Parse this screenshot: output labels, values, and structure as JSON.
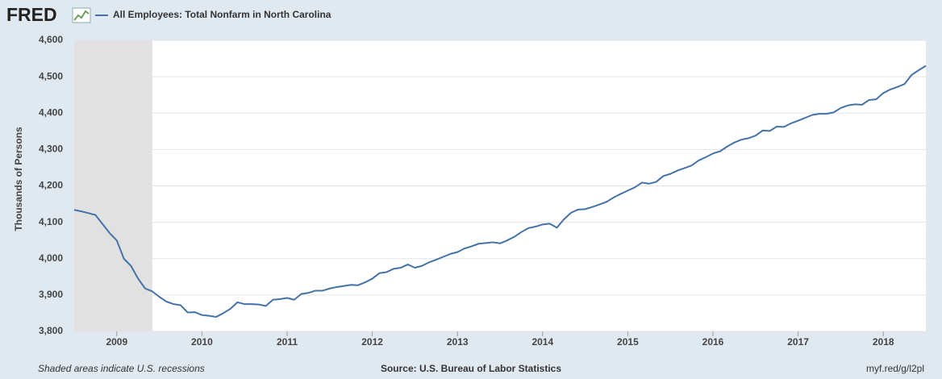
{
  "chart_data": {
    "type": "line",
    "logo": "FRED",
    "y_label": "Thousands of Persons",
    "footer_left": "Shaded areas indicate U.S. recessions",
    "footer_center": "Source: U.S. Bureau of Labor Statistics",
    "footer_right": "myf.red/g/l2pl",
    "xlim": [
      2008.5,
      2018.5
    ],
    "xticks": [
      2009,
      2010,
      2011,
      2012,
      2013,
      2014,
      2015,
      2016,
      2017,
      2018
    ],
    "ylim": [
      3800,
      4600
    ],
    "yticks": [
      {
        "value": 3800,
        "label": "3,800"
      },
      {
        "value": 3900,
        "label": "3,900"
      },
      {
        "value": 4000,
        "label": "4,000"
      },
      {
        "value": 4100,
        "label": "4,100"
      },
      {
        "value": 4200,
        "label": "4,200"
      },
      {
        "value": 4300,
        "label": "4,300"
      },
      {
        "value": 4400,
        "label": "4,400"
      },
      {
        "value": 4500,
        "label": "4,500"
      },
      {
        "value": 4600,
        "label": "4,600"
      }
    ],
    "grid": true,
    "recessions": [
      {
        "start": 2008.5,
        "end": 2009.417
      }
    ],
    "x": [
      2008.5,
      2008.583,
      2008.667,
      2008.75,
      2008.833,
      2008.917,
      2009,
      2009.083,
      2009.167,
      2009.25,
      2009.333,
      2009.417,
      2009.5,
      2009.583,
      2009.667,
      2009.75,
      2009.833,
      2009.917,
      2010,
      2010.083,
      2010.167,
      2010.25,
      2010.333,
      2010.417,
      2010.5,
      2010.583,
      2010.667,
      2010.75,
      2010.833,
      2010.917,
      2011,
      2011.083,
      2011.167,
      2011.25,
      2011.333,
      2011.417,
      2011.5,
      2011.583,
      2011.667,
      2011.75,
      2011.833,
      2011.917,
      2012,
      2012.083,
      2012.167,
      2012.25,
      2012.333,
      2012.417,
      2012.5,
      2012.583,
      2012.667,
      2012.75,
      2012.833,
      2012.917,
      2013,
      2013.083,
      2013.167,
      2013.25,
      2013.333,
      2013.417,
      2013.5,
      2013.583,
      2013.667,
      2013.75,
      2013.833,
      2013.917,
      2014,
      2014.083,
      2014.167,
      2014.25,
      2014.333,
      2014.417,
      2014.5,
      2014.583,
      2014.667,
      2014.75,
      2014.833,
      2014.917,
      2015,
      2015.083,
      2015.167,
      2015.25,
      2015.333,
      2015.417,
      2015.5,
      2015.583,
      2015.667,
      2015.75,
      2015.833,
      2015.917,
      2016,
      2016.083,
      2016.167,
      2016.25,
      2016.333,
      2016.417,
      2016.5,
      2016.583,
      2016.667,
      2016.75,
      2016.833,
      2016.917,
      2017,
      2017.083,
      2017.167,
      2017.25,
      2017.333,
      2017.417,
      2017.5,
      2017.583,
      2017.667,
      2017.75,
      2017.833,
      2017.917,
      2018,
      2018.083,
      2018.167,
      2018.25,
      2018.333,
      2018.417,
      2018.5
    ],
    "series": [
      {
        "name": "All Employees: Total Nonfarm in North Carolina",
        "color": "#4572a7",
        "values": [
          4134,
          4130,
          4125,
          4120,
          4095,
          4070,
          4050,
          4000,
          3980,
          3945,
          3918,
          3910,
          3895,
          3882,
          3875,
          3872,
          3852,
          3853,
          3845,
          3843,
          3840,
          3850,
          3862,
          3880,
          3875,
          3875,
          3874,
          3870,
          3887,
          3889,
          3892,
          3887,
          3903,
          3906,
          3912,
          3912,
          3918,
          3922,
          3925,
          3928,
          3927,
          3935,
          3945,
          3960,
          3963,
          3972,
          3975,
          3984,
          3975,
          3980,
          3990,
          3997,
          4005,
          4013,
          4018,
          4028,
          4034,
          4041,
          4043,
          4045,
          4042,
          4050,
          4060,
          4073,
          4084,
          4088,
          4094,
          4096,
          4085,
          4108,
          4126,
          4135,
          4136,
          4142,
          4149,
          4156,
          4168,
          4178,
          4187,
          4196,
          4209,
          4206,
          4211,
          4227,
          4233,
          4242,
          4249,
          4256,
          4270,
          4279,
          4289,
          4295,
          4308,
          4319,
          4327,
          4331,
          4338,
          4352,
          4351,
          4363,
          4362,
          4372,
          4379,
          4387,
          4395,
          4398,
          4398,
          4402,
          4414,
          4421,
          4424,
          4423,
          4436,
          4438,
          4455,
          4465,
          4472,
          4480,
          4505,
          4518,
          4530
        ]
      }
    ]
  }
}
